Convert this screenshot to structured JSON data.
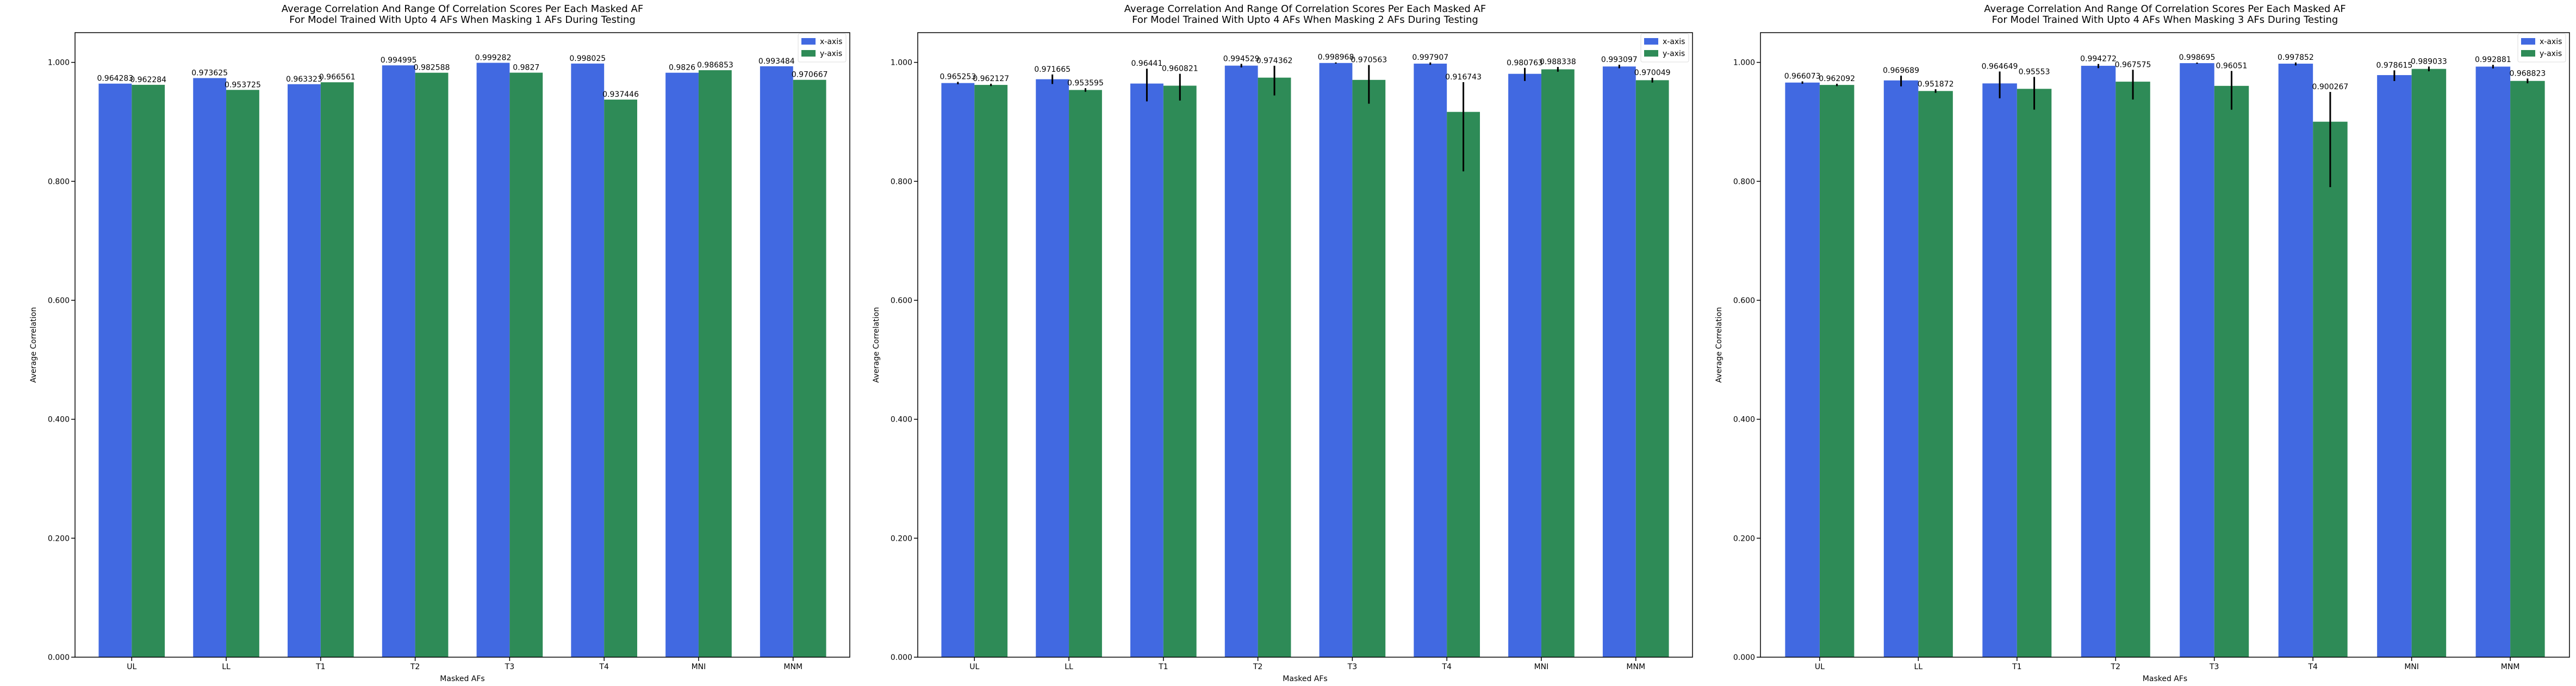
{
  "chart_data": [
    {
      "type": "bar",
      "title": "Average Correlation And Range Of Correlation Scores Per Each Masked AF",
      "subtitle": "For Model Trained With Upto 4 AFs When Masking 1 AFs During Testing",
      "xlabel": "Masked AFs",
      "ylabel": "Average Correlation",
      "categories": [
        "UL",
        "LL",
        "T1",
        "T2",
        "T3",
        "T4",
        "MNI",
        "MNM"
      ],
      "ylim": [
        0,
        1.05
      ],
      "yticks": [
        "0.000",
        "0.200",
        "0.400",
        "0.600",
        "0.800",
        "1.000"
      ],
      "legend": "top-right",
      "series": [
        {
          "name": "x-axis",
          "color": "#4169e1",
          "values": [
            0.964283,
            0.973625,
            0.963323,
            0.994995,
            0.999282,
            0.998025,
            0.9826,
            0.993484
          ],
          "labels": [
            "0.964283",
            "0.973625",
            "0.963323",
            "0.994995",
            "0.999282",
            "0.998025",
            "0.9826",
            "0.993484"
          ],
          "err_low": [
            0,
            0,
            0,
            0,
            0,
            0,
            0,
            0
          ],
          "err_high": [
            0,
            0,
            0,
            0,
            0,
            0,
            0,
            0
          ]
        },
        {
          "name": "y-axis",
          "color": "#2e8b57",
          "values": [
            0.962284,
            0.953725,
            0.966561,
            0.982588,
            0.9827,
            0.937446,
            0.986853,
            0.970667
          ],
          "labels": [
            "0.962284",
            "0.953725",
            "0.966561",
            "0.982588",
            "0.9827",
            "0.937446",
            "0.986853",
            "0.970667"
          ],
          "err_low": [
            0,
            0,
            0,
            0,
            0,
            0,
            0,
            0
          ],
          "err_high": [
            0,
            0,
            0,
            0,
            0,
            0,
            0,
            0
          ]
        }
      ]
    },
    {
      "type": "bar",
      "title": "Average Correlation And Range Of Correlation Scores Per Each Masked AF",
      "subtitle": "For Model Trained With Upto 4 AFs When Masking 2 AFs During Testing",
      "xlabel": "Masked AFs",
      "ylabel": "Average Correlation",
      "categories": [
        "UL",
        "LL",
        "T1",
        "T2",
        "T3",
        "T4",
        "MNI",
        "MNM"
      ],
      "ylim": [
        0,
        1.05
      ],
      "yticks": [
        "0.000",
        "0.200",
        "0.400",
        "0.600",
        "0.800",
        "1.000"
      ],
      "legend": "top-right",
      "series": [
        {
          "name": "x-axis",
          "color": "#4169e1",
          "values": [
            0.965253,
            0.971665,
            0.96441,
            0.994529,
            0.998968,
            0.997907,
            0.980763,
            0.993097
          ],
          "labels": [
            "0.965253",
            "0.971665",
            "0.96441",
            "0.994529",
            "0.998968",
            "0.997907",
            "0.980763",
            "0.993097"
          ],
          "err_low": [
            0.002,
            0.008,
            0.03,
            0.003,
            0.001,
            0.002,
            0.012,
            0.003
          ],
          "err_high": [
            0.002,
            0.008,
            0.025,
            0.003,
            0.001,
            0.002,
            0.01,
            0.003
          ]
        },
        {
          "name": "y-axis",
          "color": "#2e8b57",
          "values": [
            0.962127,
            0.953595,
            0.960821,
            0.974362,
            0.970563,
            0.916743,
            0.988338,
            0.970049
          ],
          "labels": [
            "0.962127",
            "0.953595",
            "0.960821",
            "0.974362",
            "0.970563",
            "0.916743",
            "0.988338",
            "0.970049"
          ],
          "err_low": [
            0.002,
            0.003,
            0.025,
            0.03,
            0.04,
            0.1,
            0.004,
            0.004
          ],
          "err_high": [
            0.002,
            0.003,
            0.02,
            0.02,
            0.025,
            0.05,
            0.004,
            0.004
          ]
        }
      ]
    },
    {
      "type": "bar",
      "title": "Average Correlation And Range Of Correlation Scores Per Each Masked AF",
      "subtitle": "For Model Trained With Upto 4 AFs When Masking 3 AFs During Testing",
      "xlabel": "Masked AFs",
      "ylabel": "Average Correlation",
      "categories": [
        "UL",
        "LL",
        "T1",
        "T2",
        "T3",
        "T4",
        "MNI",
        "MNM"
      ],
      "ylim": [
        0,
        1.05
      ],
      "yticks": [
        "0.000",
        "0.200",
        "0.400",
        "0.600",
        "0.800",
        "1.000"
      ],
      "legend": "top-right",
      "series": [
        {
          "name": "x-axis",
          "color": "#4169e1",
          "values": [
            0.966073,
            0.969689,
            0.964649,
            0.994272,
            0.998695,
            0.997852,
            0.978615,
            0.992881
          ],
          "labels": [
            "0.966073",
            "0.969689",
            "0.964649",
            "0.994272",
            "0.998695",
            "0.997852",
            "0.978615",
            "0.992881"
          ],
          "err_low": [
            0.002,
            0.01,
            0.025,
            0.004,
            0.001,
            0.003,
            0.01,
            0.003
          ],
          "err_high": [
            0.002,
            0.008,
            0.02,
            0.003,
            0.001,
            0.002,
            0.008,
            0.003
          ]
        },
        {
          "name": "y-axis",
          "color": "#2e8b57",
          "values": [
            0.962092,
            0.951872,
            0.95553,
            0.967575,
            0.96051,
            0.900267,
            0.989033,
            0.968823
          ],
          "labels": [
            "0.962092",
            "0.951872",
            "0.95553",
            "0.967575",
            "0.96051",
            "0.900267",
            "0.989033",
            "0.968823"
          ],
          "err_low": [
            0.002,
            0.003,
            0.035,
            0.03,
            0.04,
            0.11,
            0.004,
            0.004
          ],
          "err_high": [
            0.002,
            0.003,
            0.02,
            0.02,
            0.025,
            0.05,
            0.004,
            0.004
          ]
        }
      ]
    }
  ]
}
